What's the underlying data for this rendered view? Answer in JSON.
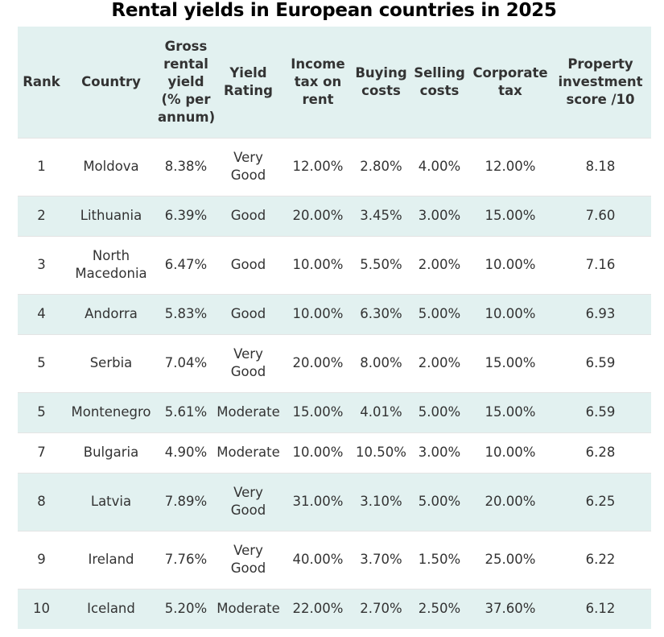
{
  "chart_data": {
    "type": "table",
    "title": "Rental yields in European countries in 2025",
    "columns": [
      "Rank",
      "Country",
      "Gross rental yield (% per annum)",
      "Yield Rating",
      "Income tax on rent",
      "Buying costs",
      "Selling costs",
      "Corporate tax",
      "Property investment score /10"
    ],
    "rows": [
      [
        "1",
        "Moldova",
        "8.38%",
        "Very Good",
        "12.00%",
        "2.80%",
        "4.00%",
        "12.00%",
        "8.18"
      ],
      [
        "2",
        "Lithuania",
        "6.39%",
        "Good",
        "20.00%",
        "3.45%",
        "3.00%",
        "15.00%",
        "7.60"
      ],
      [
        "3",
        "North Macedonia",
        "6.47%",
        "Good",
        "10.00%",
        "5.50%",
        "2.00%",
        "10.00%",
        "7.16"
      ],
      [
        "4",
        "Andorra",
        "5.83%",
        "Good",
        "10.00%",
        "6.30%",
        "5.00%",
        "10.00%",
        "6.93"
      ],
      [
        "5",
        "Serbia",
        "7.04%",
        "Very Good",
        "20.00%",
        "8.00%",
        "2.00%",
        "15.00%",
        "6.59"
      ],
      [
        "5",
        "Montenegro",
        "5.61%",
        "Moderate",
        "15.00%",
        "4.01%",
        "5.00%",
        "15.00%",
        "6.59"
      ],
      [
        "7",
        "Bulgaria",
        "4.90%",
        "Moderate",
        "10.00%",
        "10.50%",
        "3.00%",
        "10.00%",
        "6.28"
      ],
      [
        "8",
        "Latvia",
        "7.89%",
        "Very Good",
        "31.00%",
        "3.10%",
        "5.00%",
        "20.00%",
        "6.25"
      ],
      [
        "9",
        "Ireland",
        "7.76%",
        "Very Good",
        "40.00%",
        "3.70%",
        "1.50%",
        "25.00%",
        "6.22"
      ],
      [
        "10",
        "Iceland",
        "5.20%",
        "Moderate",
        "22.00%",
        "2.70%",
        "2.50%",
        "37.60%",
        "6.12"
      ]
    ]
  },
  "colors": {
    "header_bg": "#e2f1f0",
    "stripe_bg": "#e2f1f0",
    "row_bg": "#ffffff",
    "text": "#333333",
    "title": "#000000"
  }
}
